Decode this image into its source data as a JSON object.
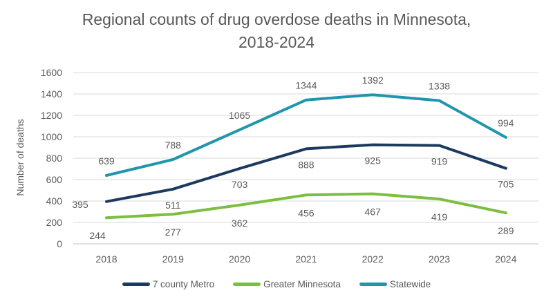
{
  "chart_data": {
    "type": "line",
    "title": "Regional counts of drug overdose deaths in Minnesota, 2018-2024",
    "ylabel": "Number of deaths",
    "xlabel": "",
    "categories": [
      "2018",
      "2019",
      "2020",
      "2021",
      "2022",
      "2023",
      "2024"
    ],
    "series": [
      {
        "name": "7 county Metro",
        "color": "#1C3A5E",
        "values": [
          395,
          511,
          703,
          888,
          925,
          919,
          705
        ]
      },
      {
        "name": "Greater Minnesota",
        "color": "#7CBE3F",
        "values": [
          244,
          277,
          362,
          456,
          467,
          419,
          289
        ]
      },
      {
        "name": "Statewide",
        "color": "#2095AC",
        "values": [
          639,
          788,
          1065,
          1344,
          1392,
          1338,
          994
        ]
      }
    ],
    "ylim": [
      0,
      1600
    ],
    "ytick_step": 200,
    "ytick_labels": [
      "0",
      "200",
      "400",
      "600",
      "800",
      "1000",
      "1200",
      "1400",
      "1600"
    ],
    "grid": true,
    "data_labels": true,
    "legend_position": "bottom"
  },
  "colors": {
    "title_text": "#595959",
    "axis_text": "#595959",
    "data_label_text": "#595959",
    "gridline": "#D9D9D9",
    "axis_baseline": "#C0C0C0",
    "background": "#FFFFFF"
  }
}
